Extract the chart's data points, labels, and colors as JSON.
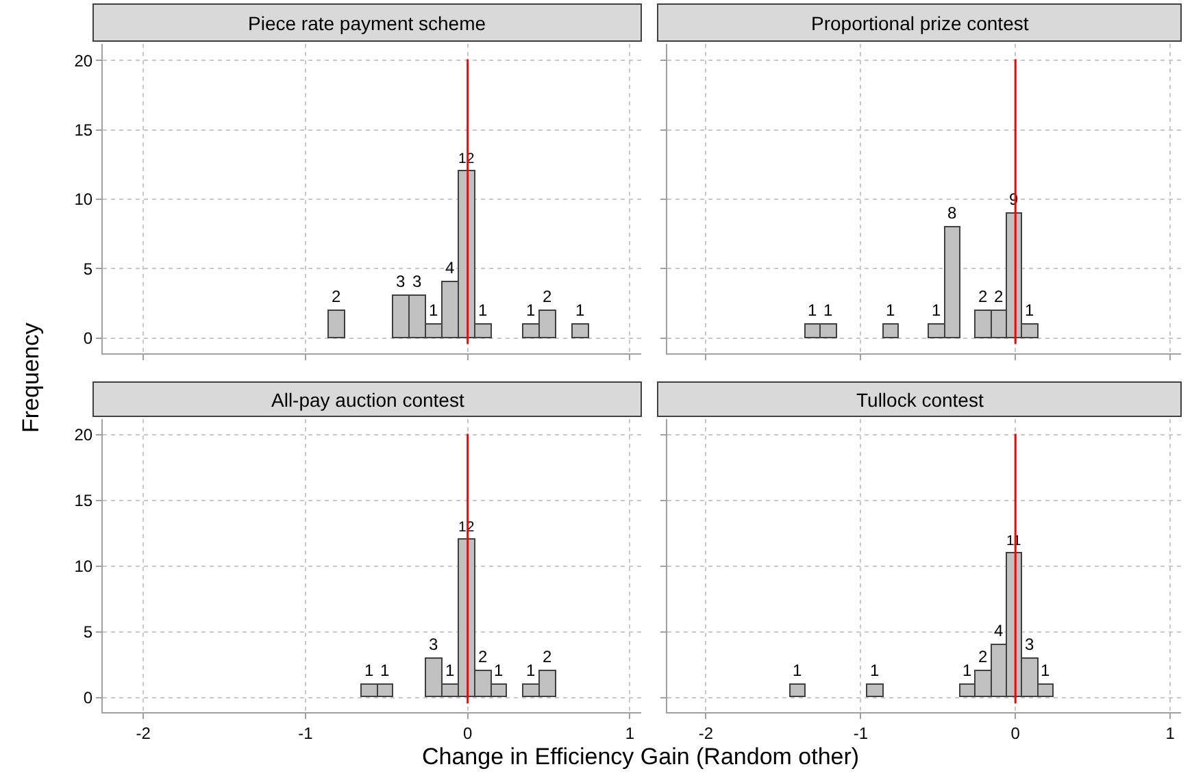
{
  "chart_data": [
    {
      "type": "histogram",
      "title": "Piece rate payment scheme",
      "ylabel": "Frequency",
      "bins": [
        -0.855,
        -0.755,
        -0.655,
        -0.555,
        -0.455,
        -0.355,
        -0.255,
        -0.155,
        -0.055,
        0.045,
        0.145,
        0.245,
        0.345,
        0.445,
        0.545,
        0.645,
        0.745
      ],
      "values": [
        2,
        0,
        0,
        0,
        3,
        3,
        1,
        4,
        12,
        1,
        0,
        0,
        1,
        2,
        0,
        1
      ],
      "value_labels": [
        "2",
        null,
        null,
        null,
        "3",
        "3",
        "1",
        "4",
        "12",
        "1",
        null,
        null,
        "1",
        "2",
        null,
        "1"
      ],
      "color": "#c0c0c0",
      "xlim": [
        -2.25,
        1.07
      ],
      "xticks": [
        -2,
        -1,
        0,
        1
      ],
      "ylim": [
        -1.1,
        21.2
      ],
      "yticks": [
        0,
        5,
        10,
        15,
        20
      ],
      "grid": true,
      "tick_labels": "y",
      "ref_lines": [
        {
          "axis": "x",
          "value": 0,
          "color": "#ff0000"
        }
      ]
    },
    {
      "type": "histogram",
      "title": "Proportional prize contest",
      "bins": [
        -1.355,
        -1.255,
        -1.155,
        -1.055,
        -0.955,
        -0.855,
        -0.755,
        -0.655,
        -0.555,
        -0.455,
        -0.355,
        -0.255,
        -0.155,
        -0.055,
        0.045,
        0.145
      ],
      "values": [
        1,
        1,
        0,
        0,
        0,
        1,
        0,
        0,
        1,
        8,
        0,
        2,
        2,
        9,
        1
      ],
      "value_labels": [
        "1",
        "1",
        null,
        null,
        null,
        "1",
        null,
        null,
        "1",
        "8",
        null,
        "2",
        "2",
        "9",
        "1"
      ],
      "color": "#c0c0c0",
      "xlim": [
        -2.25,
        1.07
      ],
      "xticks": [
        -2,
        -1,
        0,
        1
      ],
      "ylim": [
        -1.1,
        21.2
      ],
      "yticks": [
        0,
        5,
        10,
        15,
        20
      ],
      "grid": true,
      "tick_labels": false,
      "ref_lines": [
        {
          "axis": "x",
          "value": 0,
          "color": "#ff0000"
        }
      ]
    },
    {
      "type": "histogram",
      "title": "All-pay auction contest",
      "xlabel": "Change in Efficiency Gain (Random other)",
      "bins": [
        -0.655,
        -0.555,
        -0.455,
        -0.355,
        -0.255,
        -0.155,
        -0.055,
        0.045,
        0.145,
        0.245,
        0.345,
        0.445,
        0.545
      ],
      "values": [
        1,
        1,
        0,
        0,
        3,
        1,
        12,
        2,
        1,
        0,
        1,
        2
      ],
      "value_labels": [
        "1",
        "1",
        null,
        null,
        "3",
        "1",
        "12",
        "2",
        "1",
        null,
        "1",
        "2"
      ],
      "color": "#c0c0c0",
      "xlim": [
        -2.25,
        1.07
      ],
      "xticks": [
        -2,
        -1,
        0,
        1
      ],
      "ylim": [
        -1.1,
        21.2
      ],
      "yticks": [
        0,
        5,
        10,
        15,
        20
      ],
      "grid": true,
      "ref_lines": [
        {
          "axis": "x",
          "value": 0,
          "color": "#ff0000"
        }
      ]
    },
    {
      "type": "histogram",
      "title": "Tullock contest",
      "bins": [
        -1.455,
        -1.355,
        -1.255,
        -1.155,
        -1.055,
        -0.955,
        -0.855,
        -0.755,
        -0.655,
        -0.555,
        -0.455,
        -0.355,
        -0.255,
        -0.155,
        -0.055,
        0.045,
        0.145,
        0.245
      ],
      "values": [
        1,
        0,
        0,
        0,
        0,
        1,
        0,
        0,
        0,
        0,
        0,
        1,
        2,
        4,
        11,
        3,
        1
      ],
      "value_labels": [
        "1",
        null,
        null,
        null,
        null,
        "1",
        null,
        null,
        null,
        null,
        null,
        "1",
        "2",
        "4",
        "11",
        "3",
        "1"
      ],
      "color": "#c0c0c0",
      "xlim": [
        -2.25,
        1.07
      ],
      "xticks": [
        -2,
        -1,
        0,
        1
      ],
      "ylim": [
        -1.1,
        21.2
      ],
      "yticks": [
        0,
        5,
        10,
        15,
        20
      ],
      "grid": true,
      "tick_labels": "x",
      "ref_lines": [
        {
          "axis": "x",
          "value": 0,
          "color": "#ff0000"
        }
      ]
    }
  ]
}
